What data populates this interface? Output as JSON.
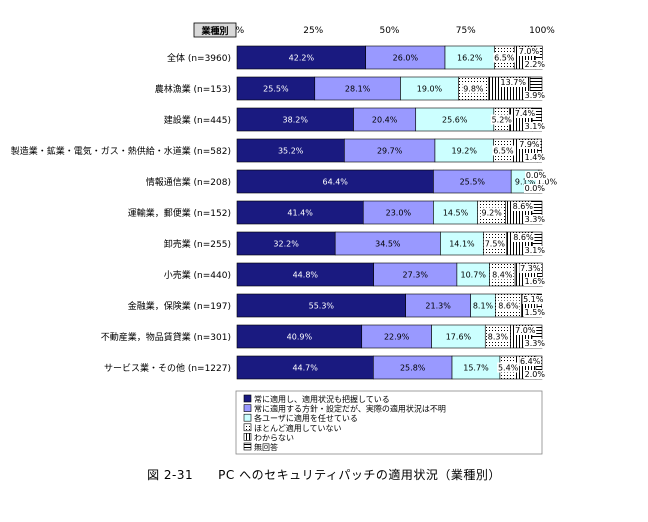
{
  "caption": "図 2-31　　PC へのセキュリティパッチの適用状況（業種別）",
  "chart_data": {
    "type": "bar",
    "orientation": "horizontal",
    "stacked": true,
    "category_header": "業種別",
    "xlim": [
      0,
      100
    ],
    "x_ticks": [
      "0%",
      "25%",
      "50%",
      "75%",
      "100%"
    ],
    "categories": [
      "全体 (n=3960)",
      "農林漁業 (n=153)",
      "建設業 (n=445)",
      "製造業・鉱業・電気・ガス・熱供給・水道業 (n=582)",
      "情報通信業 (n=208)",
      "運輸業，郵便業 (n=152)",
      "卸売業 (n=255)",
      "小売業 (n=440)",
      "金融業，保険業 (n=197)",
      "不動産業，物品賃貸業 (n=301)",
      "サービス業・その他 (n=1227)"
    ],
    "series": [
      {
        "name": "常に適用し、適用状況も把握している",
        "color": "#1a1a80",
        "pattern": "solid",
        "values": [
          42.2,
          25.5,
          38.2,
          35.2,
          64.4,
          41.4,
          32.2,
          44.8,
          55.3,
          40.9,
          44.7
        ]
      },
      {
        "name": "常に適用する方針・設定だが、実際の適用状況は不明",
        "color": "#9999ff",
        "pattern": "solid",
        "values": [
          26.0,
          28.1,
          20.4,
          29.7,
          25.5,
          23.0,
          34.5,
          27.3,
          21.3,
          22.9,
          25.8
        ]
      },
      {
        "name": "各ユーザに適用を任せている",
        "color": "#ccffff",
        "pattern": "solid",
        "values": [
          16.2,
          19.0,
          25.6,
          19.2,
          9.1,
          14.5,
          14.1,
          10.7,
          8.1,
          17.6,
          15.7
        ]
      },
      {
        "name": "ほとんど適用していない",
        "color": "#ffffff",
        "pattern": "dots",
        "values": [
          6.5,
          9.8,
          5.2,
          6.5,
          1.0,
          9.2,
          7.5,
          8.4,
          8.6,
          8.3,
          5.4
        ]
      },
      {
        "name": "わからない",
        "color": "#ffffff",
        "pattern": "vlines",
        "values": [
          7.0,
          13.7,
          7.4,
          7.9,
          0.0,
          8.6,
          8.6,
          7.3,
          5.1,
          7.0,
          6.4
        ]
      },
      {
        "name": "無回答",
        "color": "#ffffff",
        "pattern": "hlines",
        "values": [
          2.2,
          3.9,
          3.1,
          1.4,
          0.0,
          3.3,
          3.1,
          1.6,
          1.5,
          3.3,
          2.0
        ]
      }
    ],
    "value_labels": [
      [
        "42.2%",
        "26.0%",
        "16.2%",
        "6.5%",
        "7.0%",
        "2.2%"
      ],
      [
        "25.5%",
        "28.1%",
        "19.0%",
        "9.8%",
        "13.7%",
        "3.9%"
      ],
      [
        "38.2%",
        "20.4%",
        "25.6%",
        "5.2%",
        "7.4%",
        "3.1%"
      ],
      [
        "35.2%",
        "29.7%",
        "19.2%",
        "6.5%",
        "7.9%",
        "1.4%"
      ],
      [
        "64.4%",
        "25.5%",
        "9.1%",
        "1.0%",
        "0.0%",
        "0.0%"
      ],
      [
        "41.4%",
        "23.0%",
        "14.5%",
        "9.2%",
        "8.6%",
        "3.3%"
      ],
      [
        "32.2%",
        "34.5%",
        "14.1%",
        "7.5%",
        "8.6%",
        "3.1%"
      ],
      [
        "44.8%",
        "27.3%",
        "10.7%",
        "8.4%",
        "7.3%",
        "1.6%"
      ],
      [
        "55.3%",
        "21.3%",
        "8.1%",
        "8.6%",
        "5.1%",
        "1.5%"
      ],
      [
        "40.9%",
        "22.9%",
        "17.6%",
        "8.3%",
        "7.0%",
        "3.3%"
      ],
      [
        "44.7%",
        "25.8%",
        "15.7%",
        "5.4%",
        "6.4%",
        "2.0%"
      ]
    ],
    "legend_position": "bottom"
  }
}
